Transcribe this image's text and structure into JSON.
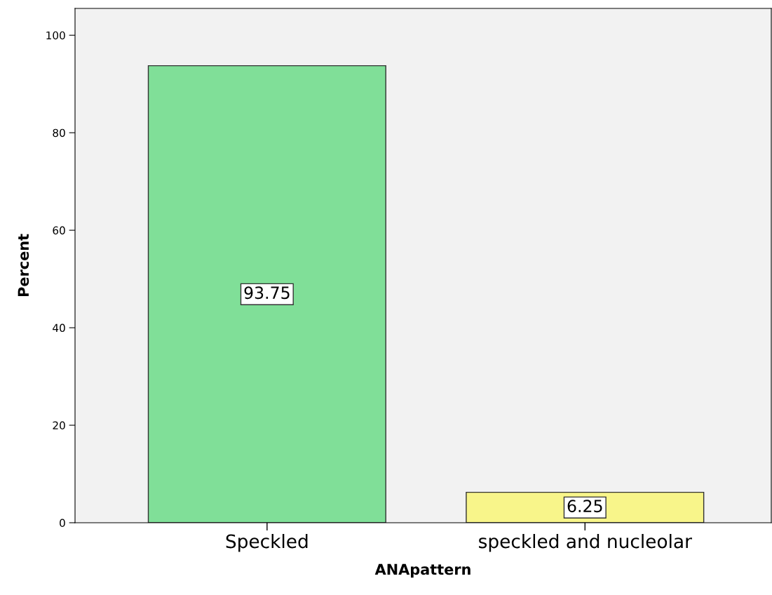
{
  "chart_data": {
    "type": "bar",
    "xlabel": "ANApattern",
    "ylabel": "Percent",
    "categories": [
      "Speckled",
      "speckled and nucleolar"
    ],
    "values": [
      93.75,
      6.25
    ],
    "colors": [
      "#80df98",
      "#f8f58a"
    ],
    "ylim": [
      0,
      105.5
    ],
    "yticks": [
      0,
      20,
      40,
      60,
      80,
      100
    ],
    "data_labels": true,
    "grid": false,
    "legend": false
  }
}
